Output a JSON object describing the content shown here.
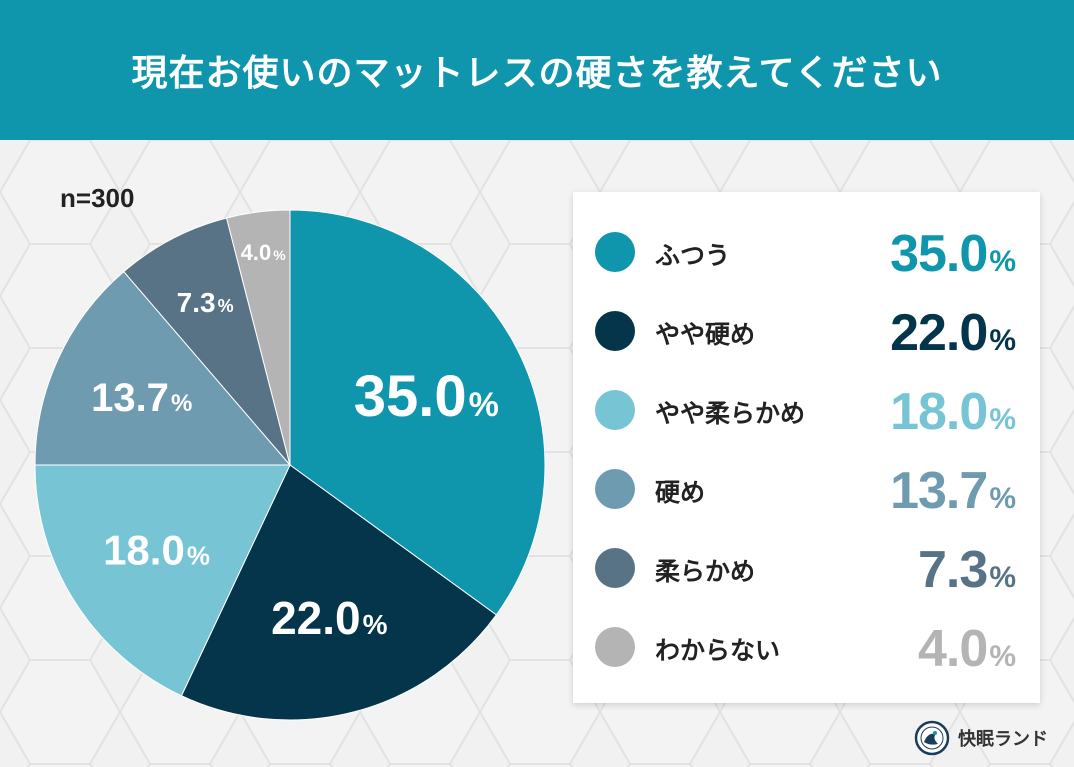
{
  "header": {
    "title": "現在お使いのマットレスの硬さを教えてください"
  },
  "sample_size": "n=300",
  "colors": {
    "header_bg": "#0f96ad",
    "futsuu": "#0f96ad",
    "yaya_katame": "#04354b",
    "yaya_yawarakame": "#76c4d4",
    "katame": "#6f9bb0",
    "yawarakame": "#587385",
    "wakaranai": "#b4b4b4"
  },
  "chart_data": {
    "type": "pie",
    "title": "現在お使いのマットレスの硬さを教えてください",
    "unit": "%",
    "slices": [
      {
        "label": "ふつう",
        "value": 35.0,
        "display": "35.0",
        "color": "#0f96ad"
      },
      {
        "label": "やや硬め",
        "value": 22.0,
        "display": "22.0",
        "color": "#04354b"
      },
      {
        "label": "やや柔らかめ",
        "value": 18.0,
        "display": "18.0",
        "color": "#76c4d4"
      },
      {
        "label": "硬め",
        "value": 13.7,
        "display": "13.7",
        "color": "#6f9bb0"
      },
      {
        "label": "柔らかめ",
        "value": 7.3,
        "display": "7.3",
        "color": "#587385"
      },
      {
        "label": "わからない",
        "value": 4.0,
        "display": "4.0",
        "color": "#b4b4b4"
      }
    ]
  },
  "brand": {
    "name": "快眠ランド",
    "logo_icon": "kaimin-land-logo-icon"
  }
}
